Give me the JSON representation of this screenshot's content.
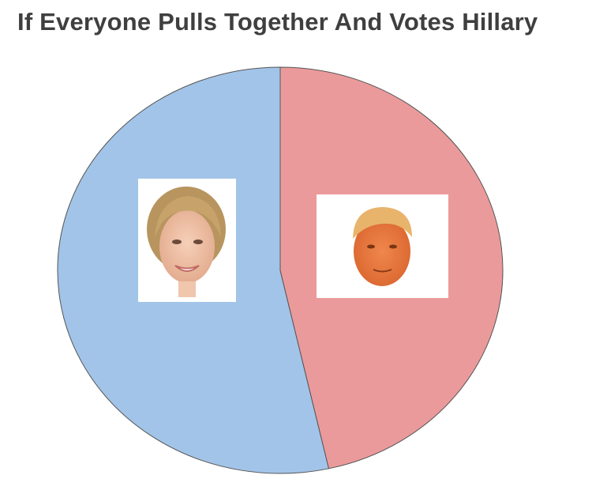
{
  "chart_data": {
    "type": "pie",
    "title": "If Everyone Pulls Together And Votes Hillary",
    "slices": [
      {
        "label": "Hillary",
        "value": 53.5,
        "color": "#a2c4e8",
        "icon": "hillary-clinton-face-photo"
      },
      {
        "label": "Trump",
        "value": 46.5,
        "color": "#eb9a9b",
        "icon": "donald-trump-face-photo"
      }
    ],
    "legend": "none",
    "labels_shown": false
  }
}
